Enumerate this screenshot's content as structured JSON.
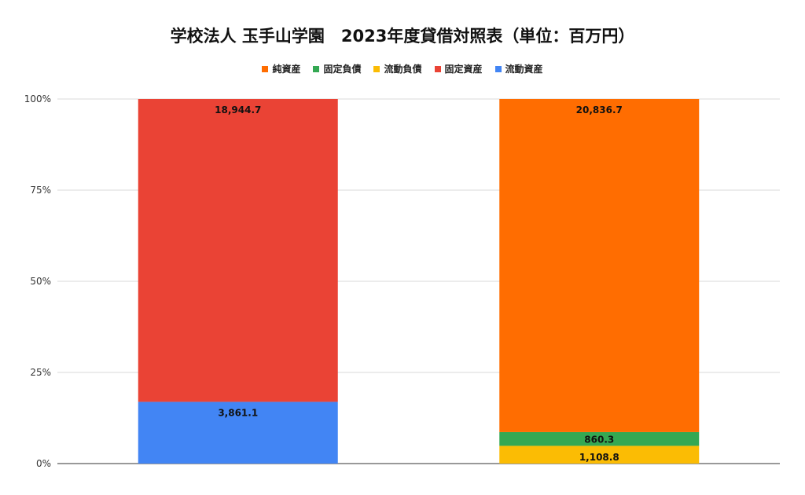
{
  "chart_data": {
    "type": "bar",
    "stacked": "percent",
    "title": "学校法人 玉手山学園　2023年度貸借対照表（単位：百万円）",
    "xlabel": "",
    "ylabel": "",
    "ylim": [
      0,
      100
    ],
    "y_ticks": [
      "0%",
      "25%",
      "50%",
      "75%",
      "100%"
    ],
    "grid": true,
    "legend_position": "top",
    "categories": [
      "",
      ""
    ],
    "series": [
      {
        "name": "流動資産",
        "color": "#4285F4",
        "values": [
          3861.1,
          0
        ]
      },
      {
        "name": "固定資産",
        "color": "#EA4335",
        "values": [
          18944.7,
          0
        ]
      },
      {
        "name": "流動負債",
        "color": "#FBBC04",
        "values": [
          0,
          1108.8
        ]
      },
      {
        "name": "固定負債",
        "color": "#34A853",
        "values": [
          0,
          860.3
        ]
      },
      {
        "name": "純資産",
        "color": "#FF6D01",
        "values": [
          0,
          20836.7
        ]
      }
    ],
    "legend_order": [
      "純資産",
      "固定負債",
      "流動負債",
      "固定資産",
      "流動資産"
    ],
    "data_labels": [
      {
        "category": 0,
        "series": "流動資産",
        "text": "3,861.1"
      },
      {
        "category": 0,
        "series": "固定資産",
        "text": "18,944.7"
      },
      {
        "category": 1,
        "series": "流動負債",
        "text": "1,108.8"
      },
      {
        "category": 1,
        "series": "固定負債",
        "text": "860.3"
      },
      {
        "category": 1,
        "series": "純資産",
        "text": "20,836.7"
      }
    ]
  }
}
